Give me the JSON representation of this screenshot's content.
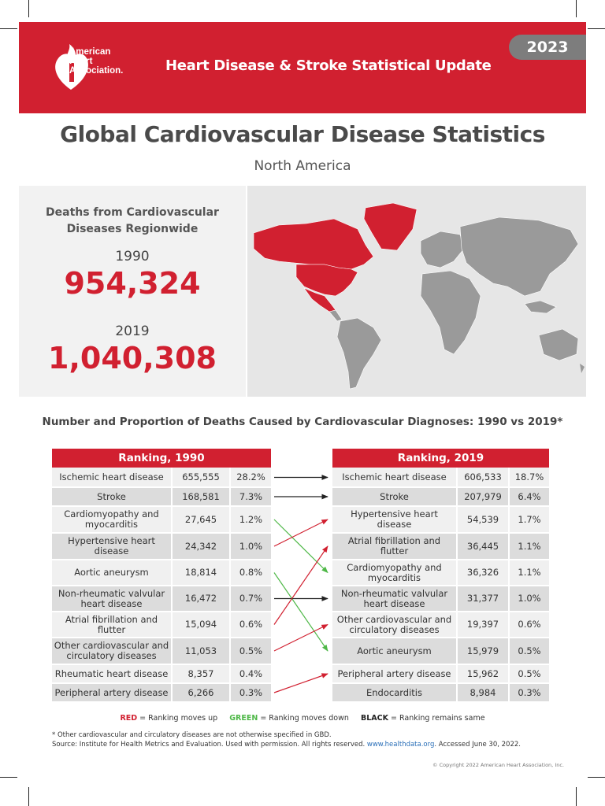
{
  "header": {
    "org_name": [
      "American",
      "Heart",
      "Association."
    ],
    "title": "Heart Disease & Stroke Statistical Update",
    "year": "2023"
  },
  "page": {
    "title": "Global Cardiovascular Disease Statistics",
    "region": "North America"
  },
  "stats": {
    "label_line1": "Deaths from Cardiovascular",
    "label_line2": "Diseases Regionwide",
    "year1": "1990",
    "value1": "954,324",
    "year2": "2019",
    "value2": "1,040,308"
  },
  "diagnoses_title": "Number and Proportion of Deaths Caused by Cardiovascular Diagnoses: 1990 vs 2019*",
  "ranking_1990": {
    "header": "Ranking, 1990",
    "rows": [
      {
        "name": "Ischemic heart disease",
        "deaths": "655,555",
        "pct": "28.2%"
      },
      {
        "name": "Stroke",
        "deaths": "168,581",
        "pct": "7.3%"
      },
      {
        "name": "Cardiomyopathy and myocarditis",
        "deaths": "27,645",
        "pct": "1.2%"
      },
      {
        "name": "Hypertensive heart disease",
        "deaths": "24,342",
        "pct": "1.0%"
      },
      {
        "name": "Aortic aneurysm",
        "deaths": "18,814",
        "pct": "0.8%"
      },
      {
        "name": "Non-rheumatic valvular heart disease",
        "deaths": "16,472",
        "pct": "0.7%"
      },
      {
        "name": "Atrial fibrillation and flutter",
        "deaths": "15,094",
        "pct": "0.6%"
      },
      {
        "name": "Other cardiovascular and circulatory diseases",
        "deaths": "11,053",
        "pct": "0.5%"
      },
      {
        "name": "Rheumatic heart disease",
        "deaths": "8,357",
        "pct": "0.4%"
      },
      {
        "name": "Peripheral artery disease",
        "deaths": "6,266",
        "pct": "0.3%"
      }
    ]
  },
  "ranking_2019": {
    "header": "Ranking, 2019",
    "rows": [
      {
        "name": "Ischemic heart disease",
        "deaths": "606,533",
        "pct": "18.7%"
      },
      {
        "name": "Stroke",
        "deaths": "207,979",
        "pct": "6.4%"
      },
      {
        "name": "Hypertensive heart disease",
        "deaths": "54,539",
        "pct": "1.7%"
      },
      {
        "name": "Atrial fibrillation and flutter",
        "deaths": "36,445",
        "pct": "1.1%"
      },
      {
        "name": "Cardiomyopathy and myocarditis",
        "deaths": "36,326",
        "pct": "1.1%"
      },
      {
        "name": "Non-rheumatic valvular heart disease",
        "deaths": "31,377",
        "pct": "1.0%"
      },
      {
        "name": "Other cardiovascular and circulatory diseases",
        "deaths": "19,397",
        "pct": "0.6%"
      },
      {
        "name": "Aortic aneurysm",
        "deaths": "15,979",
        "pct": "0.5%"
      },
      {
        "name": "Peripheral artery disease",
        "deaths": "15,962",
        "pct": "0.5%"
      },
      {
        "name": "Endocarditis",
        "deaths": "8,984",
        "pct": "0.3%"
      }
    ]
  },
  "rank_changes": [
    {
      "from": 1,
      "to": 1,
      "status": "same"
    },
    {
      "from": 2,
      "to": 2,
      "status": "same"
    },
    {
      "from": 3,
      "to": 5,
      "status": "down"
    },
    {
      "from": 4,
      "to": 3,
      "status": "up"
    },
    {
      "from": 5,
      "to": 8,
      "status": "down"
    },
    {
      "from": 6,
      "to": 6,
      "status": "same"
    },
    {
      "from": 7,
      "to": 4,
      "status": "up"
    },
    {
      "from": 8,
      "to": 7,
      "status": "up"
    },
    {
      "from": 10,
      "to": 9,
      "status": "up"
    }
  ],
  "legend": {
    "red_word": "RED",
    "red_text": " = Ranking moves up",
    "green_word": "GREEN",
    "green_text": " = Ranking moves down",
    "black_word": "BLACK",
    "black_text": " = Ranking remains same"
  },
  "colors": {
    "up": "#d12030",
    "down": "#4fb848",
    "same": "#222222",
    "brand": "#d12030"
  },
  "footnote": {
    "line1": "* Other cardiovascular and circulatory diseases are not otherwise specified in GBD.",
    "line2_pre": "Source: Institute for Health Metrics and Evaluation. Used with permission. All rights reserved. ",
    "link": "www.healthdata.org",
    "line2_post": ". Accessed June 30, 2022."
  },
  "copyright": "© Copyright 2022 American Heart Association, Inc."
}
